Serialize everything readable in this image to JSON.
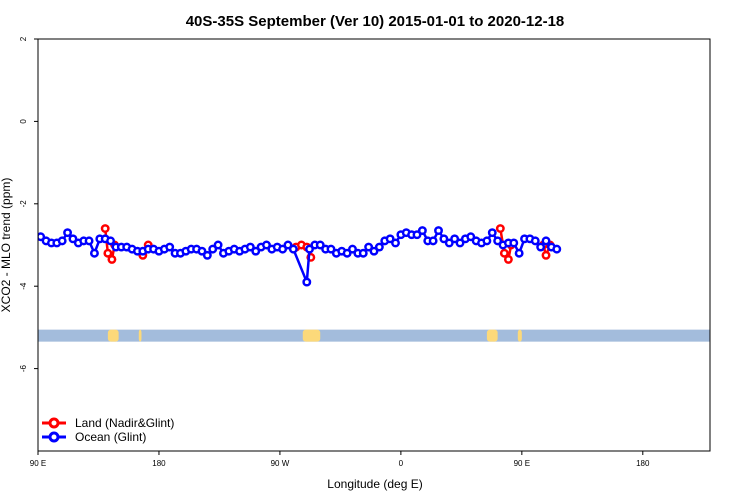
{
  "chart_data": {
    "type": "line",
    "title": "40S-35S September (Ver 10)   2015-01-01 to 2020-12-18",
    "xlabel": "Longitude (deg E)",
    "ylabel": "XCO2 - MLO trend (ppm)",
    "xlim": [
      90,
      450
    ],
    "ylim": [
      -8,
      2
    ],
    "yticks": [
      2,
      0,
      -2,
      -4,
      -6
    ],
    "xticks": [
      {
        "value": 90,
        "label": "90 E"
      },
      {
        "value": 180,
        "label": "180"
      },
      {
        "value": 270,
        "label": "90 W"
      },
      {
        "value": 360,
        "label": "0"
      },
      {
        "value": 450,
        "label": "90 E"
      },
      {
        "value": 540,
        "label": "180"
      }
    ],
    "grid": false,
    "legend_position": "bottom-left",
    "colors": {
      "land": "#ff0000",
      "ocean": "#0000ff",
      "ocean_band": "#a3bcdc",
      "land_band": "#fcd97a"
    },
    "land_band_y": -5.2,
    "land_segments": [
      [
        142,
        150
      ],
      [
        165,
        167
      ],
      [
        287,
        300
      ],
      [
        424,
        432
      ],
      [
        447,
        450
      ]
    ],
    "series": [
      {
        "name": "Land (Nadir&Glint)",
        "color": "#ff0000",
        "segments": [
          [
            [
              140,
              -2.6
            ],
            [
              142,
              -3.2
            ],
            [
              145,
              -3.35
            ],
            [
              147,
              -3.0
            ]
          ],
          [
            [
              168,
              -3.25
            ],
            [
              172,
              -3.0
            ]
          ],
          [
            [
              282,
              -3.05
            ],
            [
              286,
              -3.0
            ],
            [
              290,
              -3.05
            ],
            [
              293,
              -3.3
            ]
          ],
          [
            [
              434,
              -2.6
            ],
            [
              437,
              -3.2
            ],
            [
              440,
              -3.35
            ],
            [
              442,
              -3.0
            ]
          ],
          [
            [
              466,
              -3.0
            ],
            [
              468,
              -3.25
            ],
            [
              471,
              -3.0
            ]
          ]
        ]
      },
      {
        "name": "Ocean (Glint)",
        "color": "#0000ff",
        "points": [
          [
            92,
            -2.8
          ],
          [
            96,
            -2.9
          ],
          [
            100,
            -2.95
          ],
          [
            104,
            -2.95
          ],
          [
            108,
            -2.9
          ],
          [
            112,
            -2.7
          ],
          [
            116,
            -2.85
          ],
          [
            120,
            -2.95
          ],
          [
            124,
            -2.9
          ],
          [
            128,
            -2.9
          ],
          [
            132,
            -3.2
          ],
          [
            136,
            -2.85
          ],
          [
            140,
            -2.85
          ],
          [
            144,
            -2.9
          ],
          [
            148,
            -3.05
          ],
          [
            152,
            -3.05
          ],
          [
            156,
            -3.05
          ],
          [
            160,
            -3.1
          ],
          [
            164,
            -3.15
          ],
          [
            168,
            -3.15
          ],
          [
            172,
            -3.1
          ],
          [
            176,
            -3.1
          ],
          [
            180,
            -3.15
          ],
          [
            184,
            -3.1
          ],
          [
            188,
            -3.05
          ],
          [
            192,
            -3.2
          ],
          [
            196,
            -3.2
          ],
          [
            200,
            -3.15
          ],
          [
            204,
            -3.1
          ],
          [
            208,
            -3.1
          ],
          [
            212,
            -3.15
          ],
          [
            216,
            -3.25
          ],
          [
            220,
            -3.1
          ],
          [
            224,
            -3.0
          ],
          [
            228,
            -3.2
          ],
          [
            232,
            -3.15
          ],
          [
            236,
            -3.1
          ],
          [
            240,
            -3.15
          ],
          [
            244,
            -3.1
          ],
          [
            248,
            -3.05
          ],
          [
            252,
            -3.15
          ],
          [
            256,
            -3.05
          ],
          [
            260,
            -3.0
          ],
          [
            264,
            -3.1
          ],
          [
            268,
            -3.05
          ],
          [
            272,
            -3.1
          ],
          [
            276,
            -3.0
          ],
          [
            280,
            -3.1
          ],
          [
            290,
            -3.9
          ],
          [
            292,
            -3.1
          ],
          [
            296,
            -3.0
          ],
          [
            300,
            -3.0
          ],
          [
            304,
            -3.1
          ],
          [
            308,
            -3.1
          ],
          [
            312,
            -3.2
          ],
          [
            316,
            -3.15
          ],
          [
            320,
            -3.2
          ],
          [
            324,
            -3.1
          ],
          [
            328,
            -3.2
          ],
          [
            332,
            -3.2
          ],
          [
            336,
            -3.05
          ],
          [
            340,
            -3.15
          ],
          [
            344,
            -3.05
          ],
          [
            348,
            -2.9
          ],
          [
            352,
            -2.85
          ],
          [
            356,
            -2.95
          ],
          [
            360,
            -2.75
          ],
          [
            364,
            -2.7
          ],
          [
            368,
            -2.75
          ],
          [
            372,
            -2.75
          ],
          [
            376,
            -2.65
          ],
          [
            380,
            -2.9
          ],
          [
            384,
            -2.9
          ],
          [
            388,
            -2.65
          ],
          [
            392,
            -2.85
          ],
          [
            396,
            -2.95
          ],
          [
            400,
            -2.85
          ],
          [
            404,
            -2.95
          ],
          [
            408,
            -2.85
          ],
          [
            412,
            -2.8
          ],
          [
            416,
            -2.9
          ],
          [
            420,
            -2.95
          ],
          [
            424,
            -2.9
          ],
          [
            428,
            -2.7
          ],
          [
            432,
            -2.9
          ],
          [
            436,
            -3.0
          ],
          [
            440,
            -2.95
          ],
          [
            444,
            -2.95
          ],
          [
            448,
            -3.2
          ],
          [
            452,
            -2.85
          ],
          [
            456,
            -2.85
          ],
          [
            460,
            -2.9
          ],
          [
            464,
            -3.05
          ],
          [
            468,
            -2.9
          ],
          [
            472,
            -3.05
          ],
          [
            476,
            -3.1
          ]
        ]
      }
    ]
  }
}
